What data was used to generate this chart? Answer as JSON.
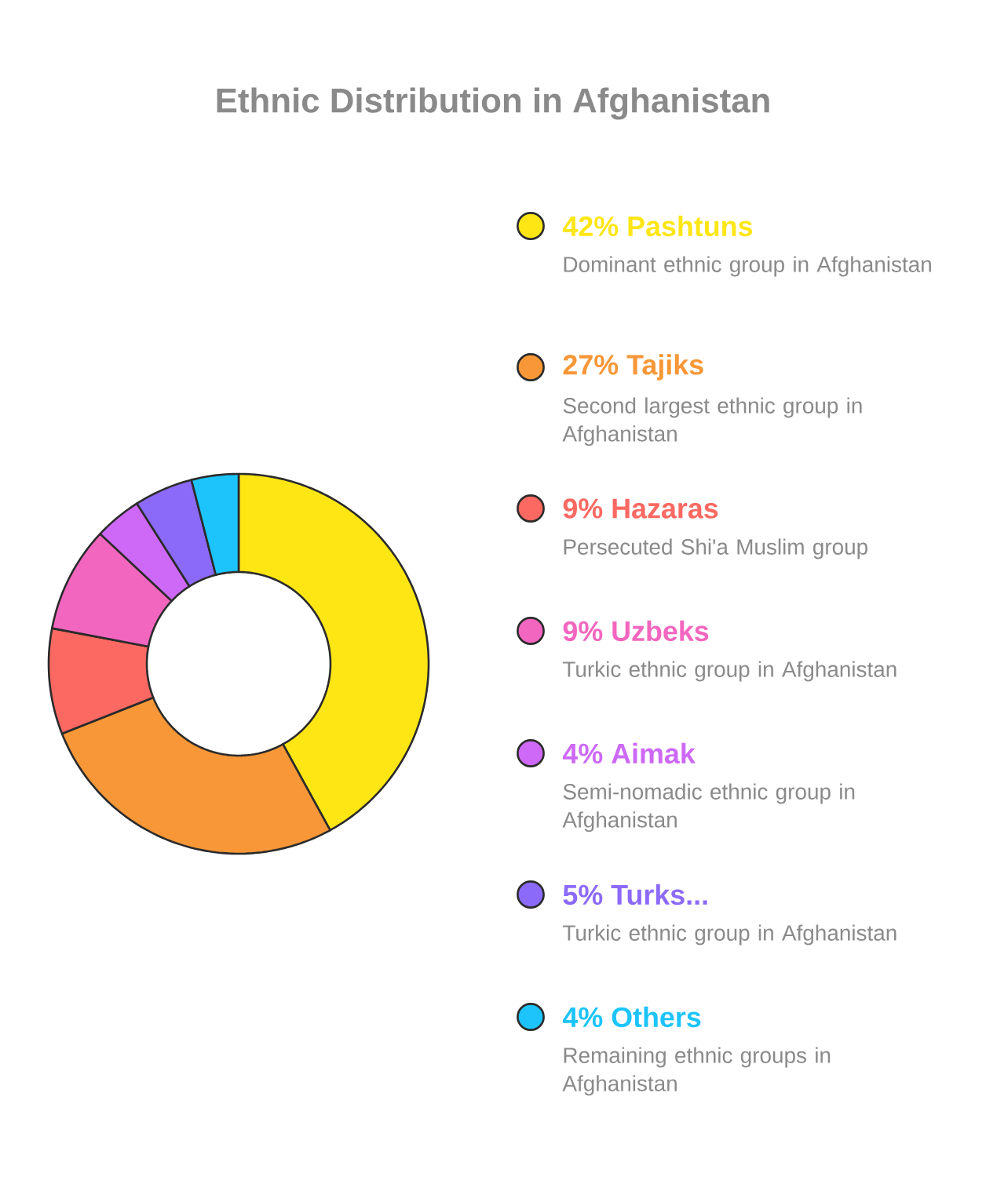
{
  "chart_data": {
    "type": "donut",
    "title": "Ethnic Distribution in Afghanistan",
    "categories": [
      "42% Pashtuns",
      "27% Tajiks",
      "9% Hazaras",
      "9% Uzbeks",
      "4% Aimak",
      "5% Turks...",
      "4% Others"
    ],
    "values": [
      42,
      27,
      9,
      9,
      4,
      5,
      4
    ],
    "colors": [
      "#fde614",
      "#f79737",
      "#fb6962",
      "#f366bf",
      "#cd69f6",
      "#8c6af9",
      "#1cc4fb"
    ],
    "annotations": [
      "Dominant ethnic group in Afghanistan",
      "Second largest ethnic group in Afghanistan",
      "Persecuted Shi'a Muslim group",
      "Turkic ethnic group in Afghanistan",
      "Semi-nomadic ethnic group in Afghanistan",
      "Turkic ethnic group in Afghanistan",
      "Remaining ethnic groups in Afghanistan"
    ],
    "legend": "right"
  }
}
